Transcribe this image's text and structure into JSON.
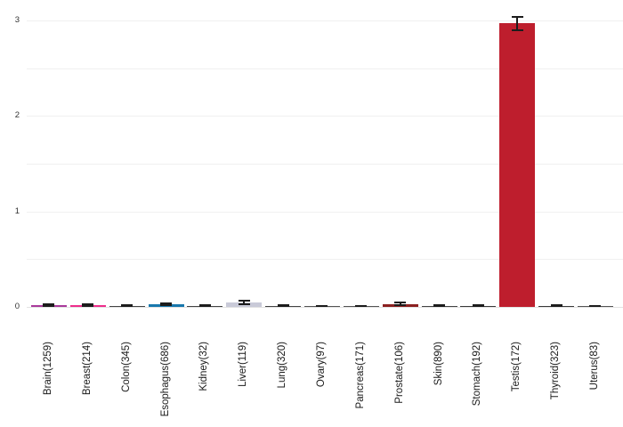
{
  "chart_data": {
    "type": "bar",
    "title": "",
    "xlabel": "",
    "ylabel": "",
    "categories": [
      "Brain(1259)",
      "Breast(214)",
      "Colon(345)",
      "Esophagus(686)",
      "Kidney(32)",
      "Liver(119)",
      "Lung(320)",
      "Ovary(97)",
      "Pancreas(171)",
      "Prostate(106)",
      "Skin(890)",
      "Stomach(192)",
      "Testis(172)",
      "Thyroid(323)",
      "Uterus(83)"
    ],
    "values": [
      0.02,
      0.02,
      0.01,
      0.025,
      0.01,
      0.045,
      0.01,
      0.005,
      0.005,
      0.03,
      0.01,
      0.01,
      2.97,
      0.01,
      0.005
    ],
    "errors": [
      0.008,
      0.008,
      0.005,
      0.01,
      0.005,
      0.018,
      0.005,
      0.003,
      0.003,
      0.012,
      0.005,
      0.005,
      0.07,
      0.005,
      0.003
    ],
    "bar_colors": [
      "#a93a9b",
      "#ee2d8b",
      "#444444",
      "#1878ad",
      "#444444",
      "#c9cad8",
      "#444444",
      "#555555",
      "#555555",
      "#8b2020",
      "#444444",
      "#3a3a3a",
      "#be1e2d",
      "#3a3a3a",
      "#555555"
    ],
    "ylim": [
      0,
      3
    ],
    "yticks": [
      "0",
      "1",
      "2",
      "3"
    ],
    "grid_step": 0.5,
    "grid": true,
    "legend_position": "none",
    "x_tick_rotation": 90,
    "background_color": "#ffffff",
    "gridline_color": "#f0f0f0",
    "axis_line_color": "#e2e2e2",
    "error_bar_color": "#1c1c1c",
    "tick_label_color": "#333333"
  }
}
